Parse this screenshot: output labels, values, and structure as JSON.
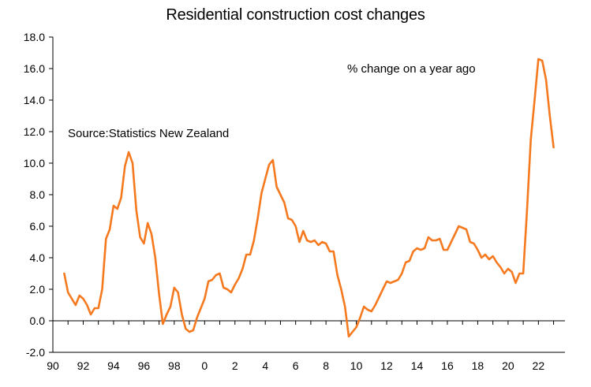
{
  "chart_data": {
    "type": "line",
    "title": "Residential construction cost changes",
    "xlabel": "",
    "ylabel": "",
    "xlim": [
      1990,
      2023.75
    ],
    "ylim": [
      -2,
      18
    ],
    "x_tick_labels": [
      "90",
      "92",
      "94",
      "96",
      "98",
      "0",
      "2",
      "4",
      "6",
      "8",
      "10",
      "12",
      "14",
      "16",
      "18",
      "20",
      "22"
    ],
    "y_tick_labels": [
      "18.0",
      "16.0",
      "14.0",
      "12.0",
      "10.0",
      "8.0",
      "6.0",
      "4.0",
      "2.0",
      "0.0",
      "-2.0"
    ],
    "annotations": {
      "units": "% change on a year ago",
      "source": "Source:Statistics New Zealand"
    },
    "grid": false,
    "color": "#f5791f",
    "series": [
      {
        "name": "Residential construction cost changes",
        "x": [
          1990.75,
          1991.0,
          1991.25,
          1991.5,
          1991.75,
          1992.0,
          1992.25,
          1992.5,
          1992.75,
          1993.0,
          1993.25,
          1993.5,
          1993.75,
          1994.0,
          1994.25,
          1994.5,
          1994.75,
          1995.0,
          1995.25,
          1995.5,
          1995.75,
          1996.0,
          1996.25,
          1996.5,
          1996.75,
          1997.0,
          1997.25,
          1997.5,
          1997.75,
          1998.0,
          1998.25,
          1998.5,
          1998.75,
          1999.0,
          1999.25,
          1999.5,
          1999.75,
          2000.0,
          2000.25,
          2000.5,
          2000.75,
          2001.0,
          2001.25,
          2001.5,
          2001.75,
          2002.0,
          2002.25,
          2002.5,
          2002.75,
          2003.0,
          2003.25,
          2003.5,
          2003.75,
          2004.0,
          2004.25,
          2004.5,
          2004.75,
          2005.0,
          2005.25,
          2005.5,
          2005.75,
          2006.0,
          2006.25,
          2006.5,
          2006.75,
          2007.0,
          2007.25,
          2007.5,
          2007.75,
          2008.0,
          2008.25,
          2008.5,
          2008.75,
          2009.0,
          2009.25,
          2009.5,
          2009.75,
          2010.0,
          2010.25,
          2010.5,
          2010.75,
          2011.0,
          2011.25,
          2011.5,
          2011.75,
          2012.0,
          2012.25,
          2012.5,
          2012.75,
          2013.0,
          2013.25,
          2013.5,
          2013.75,
          2014.0,
          2014.25,
          2014.5,
          2014.75,
          2015.0,
          2015.25,
          2015.5,
          2015.75,
          2016.0,
          2016.25,
          2016.5,
          2016.75,
          2017.0,
          2017.25,
          2017.5,
          2017.75,
          2018.0,
          2018.25,
          2018.5,
          2018.75,
          2019.0,
          2019.25,
          2019.5,
          2019.75,
          2020.0,
          2020.25,
          2020.5,
          2020.75,
          2021.0,
          2021.25,
          2021.5,
          2021.75,
          2022.0,
          2022.25,
          2022.5,
          2022.75,
          2023.0
        ],
        "values": [
          3.0,
          1.8,
          1.4,
          1.0,
          1.6,
          1.4,
          1.0,
          0.4,
          0.8,
          0.8,
          2.0,
          5.2,
          5.8,
          7.3,
          7.1,
          7.8,
          9.8,
          10.7,
          10.0,
          7.0,
          5.3,
          4.9,
          6.2,
          5.5,
          4.0,
          1.7,
          -0.2,
          0.4,
          0.9,
          2.1,
          1.8,
          0.4,
          -0.5,
          -0.7,
          -0.6,
          0.2,
          0.8,
          1.4,
          2.5,
          2.6,
          2.9,
          3.0,
          2.1,
          2.0,
          1.8,
          2.3,
          2.7,
          3.3,
          4.2,
          4.2,
          5.1,
          6.5,
          8.1,
          9.0,
          9.9,
          10.2,
          8.5,
          8.0,
          7.5,
          6.5,
          6.4,
          6.0,
          5.0,
          5.7,
          5.1,
          5.0,
          5.1,
          4.8,
          5.0,
          4.9,
          4.4,
          4.4,
          2.9,
          2.0,
          0.9,
          -1.0,
          -0.7,
          -0.4,
          0.2,
          0.9,
          0.7,
          0.6,
          1.0,
          1.5,
          2.0,
          2.5,
          2.4,
          2.5,
          2.6,
          3.0,
          3.7,
          3.8,
          4.4,
          4.6,
          4.5,
          4.6,
          5.3,
          5.1,
          5.1,
          5.2,
          4.5,
          4.5,
          5.0,
          5.5,
          6.0,
          5.9,
          5.8,
          5.0,
          4.9,
          4.5,
          4.0,
          4.2,
          3.9,
          4.1,
          3.7,
          3.4,
          3.0,
          3.3,
          3.1,
          2.4,
          3.0,
          3.0,
          7.0,
          11.5,
          14.0,
          16.6,
          16.5,
          15.3,
          13.0,
          11.0
        ]
      }
    ]
  }
}
